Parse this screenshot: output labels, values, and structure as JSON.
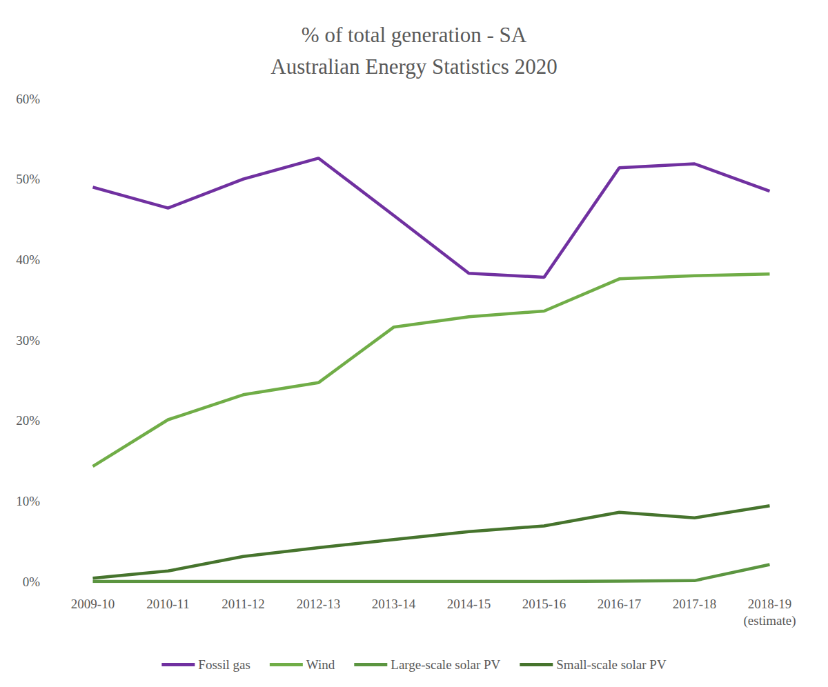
{
  "chart_data": {
    "type": "line",
    "title": "% of total generation - SA\nAustralian Energy Statistics 2020",
    "categories": [
      "2009-10",
      "2010-11",
      "2011-12",
      "2012-13",
      "2013-14",
      "2014-15",
      "2015-16",
      "2016-17",
      "2017-18",
      "2018-19\n(estimate)"
    ],
    "series": [
      {
        "name": "Fossil gas",
        "color": "#7030a0",
        "values": [
          49.0,
          46.4,
          50.0,
          52.6,
          45.5,
          38.3,
          37.8,
          51.4,
          51.9,
          48.5
        ]
      },
      {
        "name": "Wind",
        "color": "#70ad47",
        "values": [
          14.3,
          20.1,
          23.2,
          24.7,
          31.6,
          32.9,
          33.6,
          37.6,
          38.0,
          38.2
        ]
      },
      {
        "name": "Large-scale solar PV",
        "color": "#5b9540",
        "values": [
          0,
          0,
          0,
          0,
          0,
          0,
          0,
          0.05,
          0.1,
          2.1
        ]
      },
      {
        "name": "Small-scale solar PV",
        "color": "#46742d",
        "values": [
          0.4,
          1.3,
          3.1,
          4.2,
          5.2,
          6.2,
          6.9,
          8.6,
          7.9,
          9.4
        ]
      }
    ],
    "ylim": [
      0,
      60
    ],
    "yticks": [
      {
        "value": 0,
        "label": "0%"
      },
      {
        "value": 10,
        "label": "10%"
      },
      {
        "value": 20,
        "label": "20%"
      },
      {
        "value": 30,
        "label": "30%"
      },
      {
        "value": 40,
        "label": "40%"
      },
      {
        "value": 50,
        "label": "50%"
      },
      {
        "value": 60,
        "label": "60%"
      }
    ],
    "grid": false,
    "legend": "bottom"
  }
}
